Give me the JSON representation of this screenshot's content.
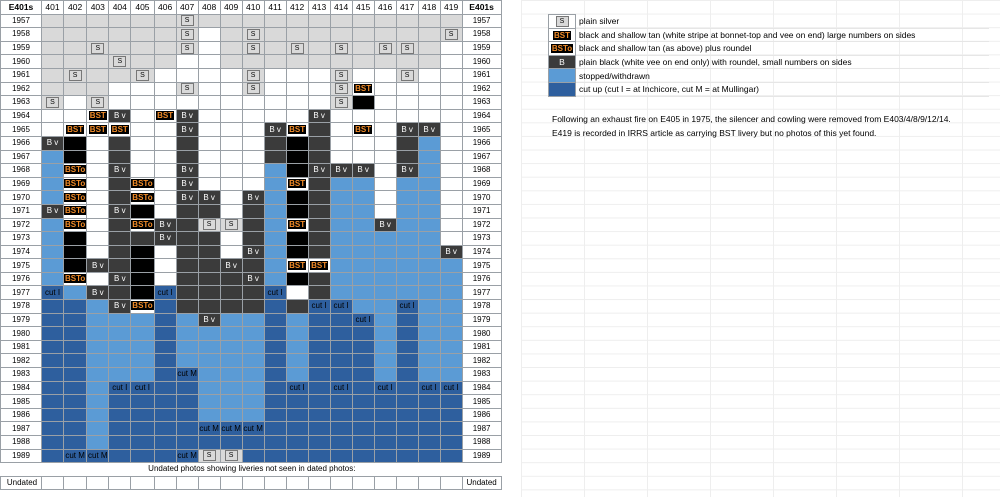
{
  "header": {
    "left": "E401s",
    "right": "E401s"
  },
  "columns": [
    "401",
    "402",
    "403",
    "404",
    "405",
    "406",
    "407",
    "408",
    "409",
    "410",
    "411",
    "412",
    "413",
    "414",
    "415",
    "416",
    "417",
    "418",
    "419"
  ],
  "rows": [
    {
      "year": "1957",
      "cells": [
        "G",
        "G",
        "G",
        "G",
        "G",
        "G",
        "S",
        "G",
        "G",
        "G",
        "G",
        "G",
        "G",
        "G",
        "G",
        "G",
        "G",
        "G",
        "G"
      ]
    },
    {
      "year": "1958",
      "cells": [
        "G",
        "G",
        "G",
        "G",
        "G",
        "G",
        "S",
        "W",
        "G",
        "S",
        "G",
        "G",
        "G",
        "G",
        "G",
        "G",
        "G",
        "G",
        "S"
      ]
    },
    {
      "year": "1959",
      "cells": [
        "G",
        "G",
        "S",
        "G",
        "G",
        "G",
        "S",
        "W",
        "G",
        "S",
        "G",
        "S",
        "G",
        "S",
        "G",
        "S",
        "S",
        "G",
        "W"
      ]
    },
    {
      "year": "1960",
      "cells": [
        "G",
        "G",
        "G",
        "S",
        "G",
        "G",
        "W",
        "W",
        "G",
        "G",
        "G",
        "G",
        "G",
        "G",
        "G",
        "G",
        "G",
        "G",
        "W"
      ]
    },
    {
      "year": "1961",
      "cells": [
        "G",
        "S",
        "G",
        "G",
        "S",
        "W",
        "W",
        "W",
        "W",
        "S",
        "W",
        "W",
        "W",
        "S",
        "W",
        "W",
        "S",
        "W",
        "W"
      ]
    },
    {
      "year": "1962",
      "cells": [
        "G",
        "G",
        "G",
        "W",
        "W",
        "W",
        "S",
        "W",
        "W",
        "S",
        "W",
        "W",
        "W",
        "S",
        "BST",
        "W",
        "W",
        "W",
        "W"
      ]
    },
    {
      "year": "1963",
      "cells": [
        "S",
        "W",
        "S",
        "W",
        "W",
        "W",
        "W",
        "W",
        "W",
        "W",
        "W",
        "W",
        "W",
        "S",
        "K",
        "W",
        "W",
        "W",
        "W"
      ]
    },
    {
      "year": "1964",
      "cells": [
        "W",
        "W",
        "BST",
        "BV",
        "W",
        "BST",
        "BV",
        "W",
        "W",
        "W",
        "W",
        "W",
        "BV",
        "W",
        "W",
        "W",
        "W",
        "W",
        "W"
      ]
    },
    {
      "year": "1965",
      "cells": [
        "W",
        "BST",
        "BST",
        "BST",
        "W",
        "W",
        "BV",
        "W",
        "W",
        "W",
        "BV",
        "BST",
        "T",
        "W",
        "BST",
        "W",
        "BV",
        "BV",
        "W"
      ]
    },
    {
      "year": "1966",
      "cells": [
        "BV",
        "K",
        "W",
        "T",
        "W",
        "W",
        "T",
        "W",
        "W",
        "W",
        "T",
        "K",
        "T",
        "W",
        "W",
        "W",
        "T",
        "ST",
        "W"
      ]
    },
    {
      "year": "1967",
      "cells": [
        "ST",
        "K",
        "W",
        "T",
        "W",
        "W",
        "T",
        "W",
        "W",
        "W",
        "T",
        "K",
        "T",
        "W",
        "W",
        "W",
        "T",
        "ST",
        "W"
      ]
    },
    {
      "year": "1968",
      "cells": [
        "ST",
        "BSTo",
        "W",
        "BV",
        "W",
        "W",
        "BV",
        "W",
        "W",
        "W",
        "ST",
        "K",
        "BV",
        "BV",
        "BV",
        "W",
        "BV",
        "ST",
        "W"
      ]
    },
    {
      "year": "1969",
      "cells": [
        "ST",
        "BSTo",
        "W",
        "T",
        "BSTo",
        "W",
        "BV",
        "W",
        "W",
        "W",
        "ST",
        "BST",
        "T",
        "ST",
        "ST",
        "W",
        "ST",
        "ST",
        "W"
      ]
    },
    {
      "year": "1970",
      "cells": [
        "ST",
        "BSTo",
        "W",
        "T",
        "BSTo",
        "W",
        "BV",
        "BV",
        "W",
        "BV",
        "ST",
        "K",
        "T",
        "ST",
        "ST",
        "W",
        "ST",
        "ST",
        "W"
      ]
    },
    {
      "year": "1971",
      "cells": [
        "BV",
        "BSTo",
        "W",
        "BV",
        "K",
        "W",
        "T",
        "T",
        "W",
        "T",
        "ST",
        "K",
        "T",
        "ST",
        "ST",
        "W",
        "ST",
        "ST",
        "W"
      ]
    },
    {
      "year": "1972",
      "cells": [
        "ST",
        "BSTo",
        "W",
        "T",
        "BSTo",
        "BV",
        "T",
        "S",
        "S",
        "T",
        "ST",
        "BST",
        "T",
        "ST",
        "ST",
        "BV",
        "ST",
        "ST",
        "W"
      ]
    },
    {
      "year": "1973",
      "cells": [
        "ST",
        "K",
        "W",
        "T",
        "T",
        "BV",
        "T",
        "T",
        "W",
        "T",
        "ST",
        "K",
        "T",
        "ST",
        "ST",
        "ST",
        "ST",
        "ST",
        "W"
      ]
    },
    {
      "year": "1974",
      "cells": [
        "ST",
        "K",
        "W",
        "T",
        "K",
        "W",
        "T",
        "T",
        "W",
        "BV",
        "ST",
        "K",
        "T",
        "ST",
        "ST",
        "ST",
        "ST",
        "ST",
        "BV"
      ]
    },
    {
      "year": "1975",
      "cells": [
        "ST",
        "K",
        "BV",
        "T",
        "K",
        "W",
        "T",
        "T",
        "BV",
        "T",
        "ST",
        "BST",
        "BST",
        "ST",
        "ST",
        "ST",
        "ST",
        "ST",
        "ST"
      ]
    },
    {
      "year": "1976",
      "cells": [
        "ST",
        "BSTo",
        "W",
        "BV",
        "K",
        "W",
        "T",
        "T",
        "T",
        "BV",
        "ST",
        "K",
        "T",
        "ST",
        "ST",
        "ST",
        "ST",
        "ST",
        "ST"
      ]
    },
    {
      "year": "1977",
      "cells": [
        "cut I",
        "ST",
        "BV",
        "T",
        "K",
        "cut I",
        "T",
        "T",
        "T",
        "T",
        "cut I",
        "W",
        "T",
        "ST",
        "ST",
        "ST",
        "ST",
        "ST",
        "ST"
      ]
    },
    {
      "year": "1978",
      "cells": [
        "CU",
        "CU",
        "ST",
        "BV",
        "BSTo",
        "CU",
        "T",
        "T",
        "T",
        "T",
        "CU",
        "T",
        "cut I",
        "cut I",
        "ST",
        "ST",
        "cut I",
        "ST",
        "ST"
      ]
    },
    {
      "year": "1979",
      "cells": [
        "CU",
        "CU",
        "ST",
        "ST",
        "ST",
        "CU",
        "ST",
        "BV",
        "ST",
        "ST",
        "CU",
        "ST",
        "CU",
        "CU",
        "cut I",
        "ST",
        "CU",
        "ST",
        "ST"
      ]
    },
    {
      "year": "1980",
      "cells": [
        "CU",
        "CU",
        "ST",
        "ST",
        "ST",
        "CU",
        "ST",
        "ST",
        "ST",
        "ST",
        "CU",
        "ST",
        "CU",
        "CU",
        "CU",
        "ST",
        "CU",
        "ST",
        "ST"
      ]
    },
    {
      "year": "1981",
      "cells": [
        "CU",
        "CU",
        "ST",
        "ST",
        "ST",
        "CU",
        "ST",
        "ST",
        "ST",
        "ST",
        "CU",
        "ST",
        "CU",
        "CU",
        "CU",
        "ST",
        "CU",
        "ST",
        "ST"
      ]
    },
    {
      "year": "1982",
      "cells": [
        "CU",
        "CU",
        "ST",
        "ST",
        "ST",
        "CU",
        "ST",
        "ST",
        "ST",
        "ST",
        "CU",
        "ST",
        "CU",
        "CU",
        "CU",
        "ST",
        "CU",
        "ST",
        "ST"
      ]
    },
    {
      "year": "1983",
      "cells": [
        "CU",
        "CU",
        "ST",
        "ST",
        "ST",
        "CU",
        "cut M",
        "ST",
        "ST",
        "ST",
        "CU",
        "ST",
        "CU",
        "CU",
        "CU",
        "ST",
        "CU",
        "ST",
        "ST"
      ]
    },
    {
      "year": "1984",
      "cells": [
        "CU",
        "CU",
        "ST",
        "cut I",
        "cut I",
        "CU",
        "CU",
        "ST",
        "ST",
        "ST",
        "CU",
        "cut I",
        "CU",
        "cut I",
        "CU",
        "cut I",
        "CU",
        "cut I",
        "cut I"
      ]
    },
    {
      "year": "1985",
      "cells": [
        "CU",
        "CU",
        "ST",
        "CU",
        "CU",
        "CU",
        "CU",
        "ST",
        "ST",
        "ST",
        "CU",
        "CU",
        "CU",
        "CU",
        "CU",
        "CU",
        "CU",
        "CU",
        "CU"
      ]
    },
    {
      "year": "1986",
      "cells": [
        "CU",
        "CU",
        "ST",
        "CU",
        "CU",
        "CU",
        "CU",
        "ST",
        "ST",
        "ST",
        "CU",
        "CU",
        "CU",
        "CU",
        "CU",
        "CU",
        "CU",
        "CU",
        "CU"
      ]
    },
    {
      "year": "1987",
      "cells": [
        "CU",
        "CU",
        "ST",
        "CU",
        "CU",
        "CU",
        "CU",
        "cut M",
        "cut M",
        "cut M",
        "CU",
        "CU",
        "CU",
        "CU",
        "CU",
        "CU",
        "CU",
        "CU",
        "CU"
      ]
    },
    {
      "year": "1988",
      "cells": [
        "CU",
        "CU",
        "ST",
        "CU",
        "CU",
        "CU",
        "CU",
        "CU",
        "CU",
        "CU",
        "CU",
        "CU",
        "CU",
        "CU",
        "CU",
        "CU",
        "CU",
        "CU",
        "CU"
      ]
    },
    {
      "year": "1989",
      "cells": [
        "CU",
        "cut M",
        "cut M",
        "CU",
        "CU",
        "CU",
        "cut M",
        "S",
        "S",
        "CU",
        "CU",
        "CU",
        "CU",
        "CU",
        "CU",
        "CU",
        "CU",
        "CU",
        "CU"
      ]
    }
  ],
  "undated_note": "Undated photos showing liveries not seen in dated photos:",
  "undated_label": "Undated",
  "labels": {
    "S": "S",
    "BST": "BST",
    "BSTo": "BSTo",
    "BV": "B v"
  },
  "legend": [
    {
      "swatch": "S",
      "text": "plain silver"
    },
    {
      "swatch": "BST",
      "text": "black and shallow tan (white stripe at bonnet-top and vee on end) large numbers on sides"
    },
    {
      "swatch": "BSTo",
      "text": "black and shallow tan (as above) plus roundel"
    },
    {
      "swatch": "BV",
      "text": "plain black (white vee on end only) with roundel, small numbers on sides"
    },
    {
      "swatch": "ST",
      "text": "stopped/withdrawn"
    },
    {
      "swatch": "CU",
      "text": "cut up (cut I = at Inchicore, cut M = at Mullingar)"
    }
  ],
  "notes": [
    "Following an exhaust fire on E405 in 1975, the silencer and cowling were removed from E403/4/8/9/12/14.",
    "E419 is recorded in IRRS article as carrying BST livery but no photos of this yet found."
  ],
  "colors": {
    "silver": "#d9d9d9",
    "black_tan": "#000000",
    "dark_grey": "#3b3b3b",
    "stopped": "#5b9bd5",
    "cut_up": "#2e5f9e",
    "chip_text": "#f28c28"
  }
}
